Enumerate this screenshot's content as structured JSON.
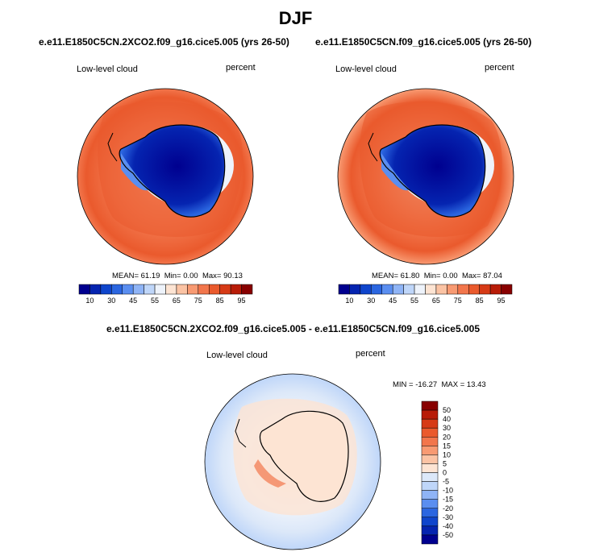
{
  "page_title": "DJF",
  "panels": [
    {
      "case": "e.e11.E1850C5CN.2XCO2.f09_g16.cice5.005 (yrs 26-50)",
      "field": "Low-level cloud",
      "units": "percent",
      "mean": "61.19",
      "min": "0.00",
      "max": "90.13"
    },
    {
      "case": "e.e11.E1850C5CN.f09_g16.cice5.005 (yrs 26-50)",
      "field": "Low-level cloud",
      "units": "percent",
      "mean": "61.80",
      "min": "0.00",
      "max": "87.04"
    }
  ],
  "diff": {
    "case": "e.e11.E1850C5CN.2XCO2.f09_g16.cice5.005 - e.e11.E1850C5CN.f09_g16.cice5.005",
    "field": "Low-level cloud",
    "units": "percent",
    "min": "-16.27",
    "max": "13.43"
  },
  "stat_labels": {
    "mean": "MEAN=",
    "min": "Min=",
    "max": "Max=",
    "diff_min": "MIN =",
    "diff_max": "MAX ="
  },
  "chart_data": [
    {
      "type": "heatmap",
      "title": "e.e11.E1850C5CN.2XCO2.f09_g16.cice5.005 (yrs 26-50)",
      "projection": "south polar stereographic",
      "variable": "Low-level cloud",
      "units": "percent",
      "stats": {
        "mean": 61.19,
        "min": 0.0,
        "max": 90.13
      },
      "colorbar": {
        "orientation": "horizontal",
        "levels": [
          10,
          20,
          30,
          40,
          45,
          50,
          55,
          60,
          65,
          70,
          75,
          80,
          85,
          90,
          95
        ],
        "tick_labels": [
          "10",
          "30",
          "45",
          "55",
          "65",
          "75",
          "85",
          "95"
        ],
        "colors": [
          "#00008f",
          "#0524b0",
          "#0f45cc",
          "#2b66e0",
          "#5a8ef0",
          "#8fb4f6",
          "#bfd6f9",
          "#eef3fb",
          "#fde4d3",
          "#fbc3a4",
          "#f89a72",
          "#f2764c",
          "#ea5a2d",
          "#d63a16",
          "#b81c08",
          "#880000"
        ]
      }
    },
    {
      "type": "heatmap",
      "title": "e.e11.E1850C5CN.f09_g16.cice5.005 (yrs 26-50)",
      "projection": "south polar stereographic",
      "variable": "Low-level cloud",
      "units": "percent",
      "stats": {
        "mean": 61.8,
        "min": 0.0,
        "max": 87.04
      },
      "colorbar": {
        "orientation": "horizontal",
        "levels": [
          10,
          20,
          30,
          40,
          45,
          50,
          55,
          60,
          65,
          70,
          75,
          80,
          85,
          90,
          95
        ],
        "tick_labels": [
          "10",
          "30",
          "45",
          "55",
          "65",
          "75",
          "85",
          "95"
        ],
        "colors": [
          "#00008f",
          "#0524b0",
          "#0f45cc",
          "#2b66e0",
          "#5a8ef0",
          "#8fb4f6",
          "#bfd6f9",
          "#eef3fb",
          "#fde4d3",
          "#fbc3a4",
          "#f89a72",
          "#f2764c",
          "#ea5a2d",
          "#d63a16",
          "#b81c08",
          "#880000"
        ]
      }
    },
    {
      "type": "heatmap",
      "title": "e.e11.E1850C5CN.2XCO2.f09_g16.cice5.005 - e.e11.E1850C5CN.f09_g16.cice5.005",
      "projection": "south polar stereographic",
      "variable": "Low-level cloud",
      "units": "percent",
      "stats": {
        "min": -16.27,
        "max": 13.43
      },
      "colorbar": {
        "orientation": "vertical",
        "levels": [
          50,
          40,
          30,
          20,
          15,
          10,
          5,
          0,
          -5,
          -10,
          -15,
          -20,
          -30,
          -40,
          -50
        ],
        "tick_labels": [
          "50",
          "40",
          "30",
          "20",
          "15",
          "10",
          "5",
          "0",
          "-5",
          "-10",
          "-15",
          "-20",
          "-30",
          "-40",
          "-50"
        ],
        "colors": [
          "#880000",
          "#b81c08",
          "#d63a16",
          "#ea5a2d",
          "#f2764c",
          "#f89a72",
          "#fbc3a4",
          "#fde4d3",
          "#dce8f9",
          "#bfd6f9",
          "#8fb4f6",
          "#5a8ef0",
          "#2b66e0",
          "#0f45cc",
          "#0524b0",
          "#00008f"
        ]
      }
    }
  ]
}
